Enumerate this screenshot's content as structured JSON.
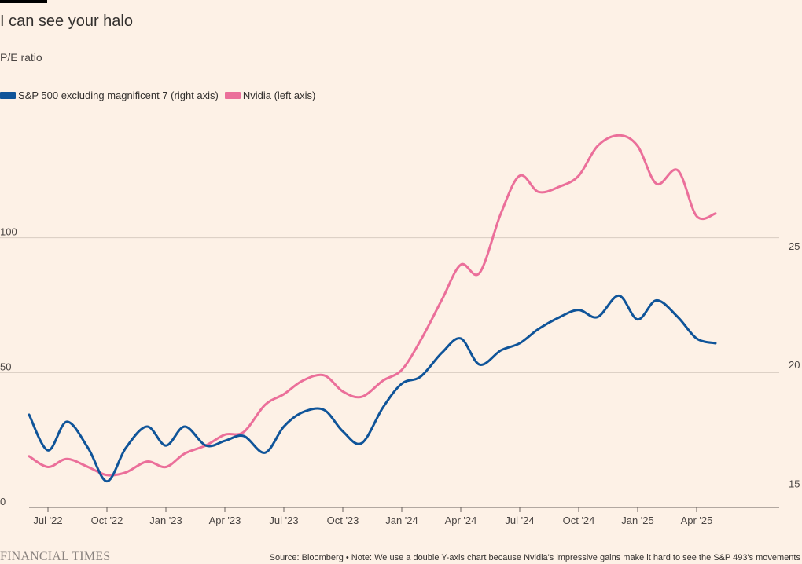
{
  "chart_data": {
    "type": "line",
    "title": "I can see your halo",
    "subtitle": "P/E ratio",
    "legend": [
      {
        "name": "S&P 500 excluding magnificent 7 (right axis)",
        "color": "#0f5499"
      },
      {
        "name": "Nvidia (left axis)",
        "color": "#eb6f9a"
      }
    ],
    "x_ticks": [
      {
        "label": "Jul '22",
        "value": 2022.5
      },
      {
        "label": "Oct '22",
        "value": 2022.75
      },
      {
        "label": "Jan '23",
        "value": 2023.0
      },
      {
        "label": "Apr '23",
        "value": 2023.25
      },
      {
        "label": "Jul '23",
        "value": 2023.5
      },
      {
        "label": "Oct '23",
        "value": 2023.75
      },
      {
        "label": "Jan '24",
        "value": 2024.0
      },
      {
        "label": "Apr '24",
        "value": 2024.25
      },
      {
        "label": "Jul '24",
        "value": 2024.5
      },
      {
        "label": "Oct '24",
        "value": 2024.75
      },
      {
        "label": "Jan '25",
        "value": 2025.0
      },
      {
        "label": "Apr '25",
        "value": 2025.25
      }
    ],
    "x_range": [
      2022.42,
      2025.6
    ],
    "left_axis": {
      "range": [
        0,
        150
      ],
      "ticks": [
        0,
        50,
        100
      ]
    },
    "right_axis": {
      "range": [
        14,
        31
      ],
      "ticks": [
        15,
        20,
        25
      ]
    },
    "series": [
      {
        "name": "Nvidia (left axis)",
        "axis": "left",
        "color": "#eb6f9a",
        "x": [
          2022.42,
          2022.5,
          2022.58,
          2022.67,
          2022.75,
          2022.83,
          2022.92,
          2023.0,
          2023.08,
          2023.17,
          2023.25,
          2023.33,
          2023.42,
          2023.5,
          2023.58,
          2023.67,
          2023.75,
          2023.83,
          2023.92,
          2024.0,
          2024.08,
          2024.17,
          2024.25,
          2024.33,
          2024.42,
          2024.5,
          2024.58,
          2024.67,
          2024.75,
          2024.83,
          2024.92,
          2025.0,
          2025.08,
          2025.17,
          2025.25,
          2025.33
        ],
        "values": [
          19,
          15,
          18,
          15,
          12,
          13,
          17,
          15,
          20,
          23,
          27,
          28,
          38,
          42,
          47,
          49,
          43,
          41,
          47,
          51,
          62,
          77,
          90,
          87,
          109,
          123,
          117,
          119,
          123,
          134,
          138,
          134,
          120,
          125,
          108,
          109
        ]
      },
      {
        "name": "S&P 500 excluding magnificent 7 (right axis)",
        "axis": "right",
        "color": "#0f5499",
        "x": [
          2022.42,
          2022.5,
          2022.58,
          2022.67,
          2022.75,
          2022.83,
          2022.92,
          2023.0,
          2023.08,
          2023.17,
          2023.25,
          2023.33,
          2023.42,
          2023.5,
          2023.58,
          2023.67,
          2023.75,
          2023.83,
          2023.92,
          2024.0,
          2024.08,
          2024.17,
          2024.25,
          2024.33,
          2024.42,
          2024.5,
          2024.58,
          2024.67,
          2024.75,
          2024.83,
          2024.92,
          2025.0,
          2025.08,
          2025.17,
          2025.25,
          2025.33
        ],
        "values": [
          17.9,
          16.4,
          17.6,
          16.5,
          15.1,
          16.5,
          17.4,
          16.6,
          17.4,
          16.6,
          16.8,
          17.0,
          16.3,
          17.4,
          18.0,
          18.1,
          17.2,
          16.7,
          18.2,
          19.2,
          19.5,
          20.5,
          21.1,
          20.0,
          20.6,
          20.9,
          21.5,
          22.0,
          22.3,
          22.0,
          22.9,
          21.9,
          22.7,
          22.0,
          21.1,
          20.9
        ]
      }
    ]
  },
  "footer": {
    "brand": "FINANCIAL TIMES",
    "source": "Source: Bloomberg • Note: We use a double Y-axis chart because Nvidia's impressive gains make it hard to see the S&P 493's movements"
  }
}
